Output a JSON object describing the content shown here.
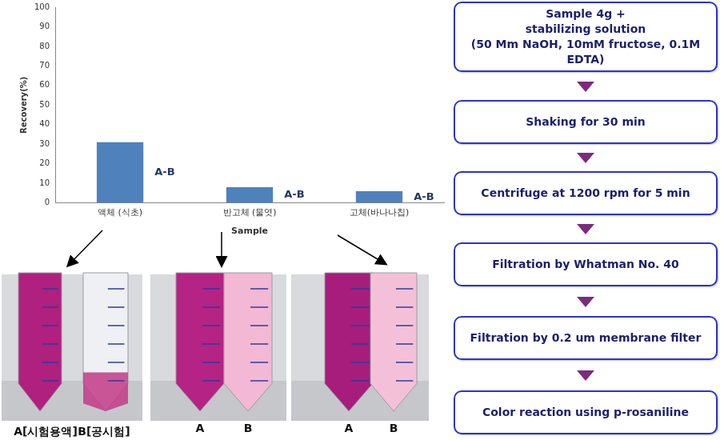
{
  "chart_data": {
    "type": "bar",
    "categories": [
      "액체 (식초)",
      "반고체 (물엿)",
      "고체(바나나칩)"
    ],
    "values": [
      31,
      8,
      6
    ],
    "color": "#4f81bd",
    "x_label": "Sample",
    "y_label": "Recovery(%)",
    "annotations": [
      "A-B",
      "A-B",
      "A-B"
    ],
    "ylim": [
      0,
      100
    ],
    "yticks": [
      0,
      10,
      20,
      30,
      40,
      50,
      60,
      70,
      80,
      90,
      100
    ],
    "grid": false
  },
  "photos": [
    {
      "labels": [
        "A[시험용액]",
        "B[공시험]"
      ]
    },
    {
      "labels": [
        "A",
        "B"
      ]
    },
    {
      "labels": [
        "A",
        "B"
      ]
    }
  ],
  "flowchart": {
    "steps": [
      [
        "Sample 4g +",
        "stabilizing solution",
        "(50 Mm NaOH, 10mM fructose, 0.1M EDTA)"
      ],
      [
        "Shaking for 30 min"
      ],
      [
        "Centrifuge at 1200 rpm for 5 min"
      ],
      [
        "Filtration by Whatman No. 40"
      ],
      [
        "Filtration by 0.2  um membrane filter"
      ],
      [
        "Color reaction using p-rosaniline"
      ]
    ]
  }
}
